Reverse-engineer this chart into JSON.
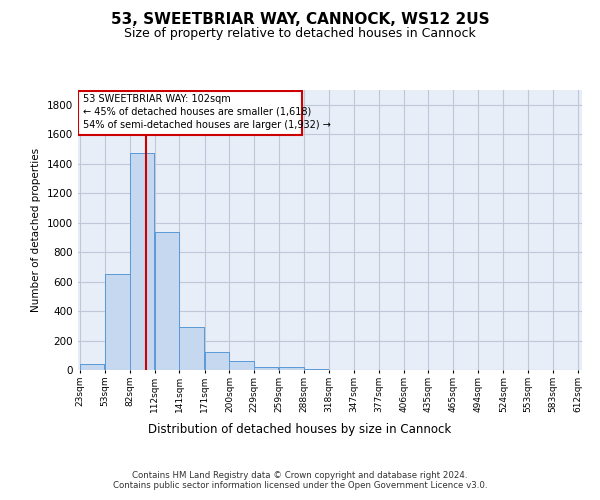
{
  "title1": "53, SWEETBRIAR WAY, CANNOCK, WS12 2US",
  "title2": "Size of property relative to detached houses in Cannock",
  "xlabel": "Distribution of detached houses by size in Cannock",
  "ylabel": "Number of detached properties",
  "footnote1": "Contains HM Land Registry data © Crown copyright and database right 2024.",
  "footnote2": "Contains public sector information licensed under the Open Government Licence v3.0.",
  "bar_color": "#c5d8f0",
  "bar_edge_color": "#5b9bd5",
  "grid_color": "#c0c8d8",
  "background_color": "#e8eef8",
  "bin_labels": [
    "23sqm",
    "53sqm",
    "82sqm",
    "112sqm",
    "141sqm",
    "171sqm",
    "200sqm",
    "229sqm",
    "259sqm",
    "288sqm",
    "318sqm",
    "347sqm",
    "377sqm",
    "406sqm",
    "435sqm",
    "465sqm",
    "494sqm",
    "524sqm",
    "553sqm",
    "583sqm",
    "612sqm"
  ],
  "bar_heights": [
    40,
    650,
    1475,
    935,
    290,
    125,
    60,
    20,
    20,
    5,
    0,
    0,
    0,
    0,
    0,
    0,
    0,
    0,
    0,
    0
  ],
  "bin_width": 29,
  "bin_starts": [
    23,
    53,
    82,
    112,
    141,
    171,
    200,
    229,
    259,
    288,
    318,
    347,
    377,
    406,
    435,
    465,
    494,
    524,
    553,
    583
  ],
  "ylim": [
    0,
    1900
  ],
  "yticks": [
    0,
    200,
    400,
    600,
    800,
    1000,
    1200,
    1400,
    1600,
    1800
  ],
  "vline_x": 102,
  "vline_color": "#cc0000",
  "annotation_title": "53 SWEETBRIAR WAY: 102sqm",
  "annotation_line1": "← 45% of detached houses are smaller (1,618)",
  "annotation_line2": "54% of semi-detached houses are larger (1,932) →",
  "annotation_box_color": "#cc0000",
  "title1_fontsize": 11,
  "title2_fontsize": 9
}
